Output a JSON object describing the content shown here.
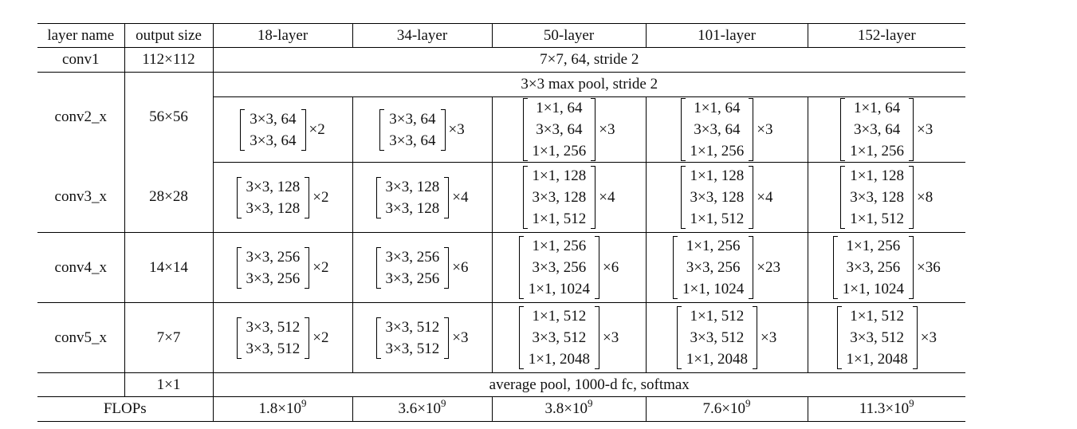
{
  "table": {
    "headers": [
      "layer name",
      "output size",
      "18-layer",
      "34-layer",
      "50-layer",
      "101-layer",
      "152-layer"
    ],
    "conv1": {
      "name": "conv1",
      "output_size": "112×112",
      "spec": "7×7, 64, stride 2"
    },
    "maxpool": {
      "spec": "3×3 max pool, stride 2"
    },
    "stages": [
      {
        "name": "conv2_x",
        "output_size": "56×56",
        "blocks": [
          {
            "lines": [
              "3×3, 64",
              "3×3, 64"
            ],
            "rep": "×2"
          },
          {
            "lines": [
              "3×3, 64",
              "3×3, 64"
            ],
            "rep": "×3"
          },
          {
            "lines": [
              "1×1, 64",
              "3×3, 64",
              "1×1, 256"
            ],
            "rep": "×3"
          },
          {
            "lines": [
              "1×1, 64",
              "3×3, 64",
              "1×1, 256"
            ],
            "rep": "×3"
          },
          {
            "lines": [
              "1×1, 64",
              "3×3, 64",
              "1×1, 256"
            ],
            "rep": "×3"
          }
        ]
      },
      {
        "name": "conv3_x",
        "output_size": "28×28",
        "blocks": [
          {
            "lines": [
              "3×3, 128",
              "3×3, 128"
            ],
            "rep": "×2"
          },
          {
            "lines": [
              "3×3, 128",
              "3×3, 128"
            ],
            "rep": "×4"
          },
          {
            "lines": [
              "1×1, 128",
              "3×3, 128",
              "1×1, 512"
            ],
            "rep": "×4"
          },
          {
            "lines": [
              "1×1, 128",
              "3×3, 128",
              "1×1, 512"
            ],
            "rep": "×4"
          },
          {
            "lines": [
              "1×1, 128",
              "3×3, 128",
              "1×1, 512"
            ],
            "rep": "×8"
          }
        ]
      },
      {
        "name": "conv4_x",
        "output_size": "14×14",
        "blocks": [
          {
            "lines": [
              "3×3, 256",
              "3×3, 256"
            ],
            "rep": "×2"
          },
          {
            "lines": [
              "3×3, 256",
              "3×3, 256"
            ],
            "rep": "×6"
          },
          {
            "lines": [
              "1×1, 256",
              "3×3, 256",
              "1×1, 1024"
            ],
            "rep": "×6"
          },
          {
            "lines": [
              "1×1, 256",
              "3×3, 256",
              "1×1, 1024"
            ],
            "rep": "×23"
          },
          {
            "lines": [
              "1×1, 256",
              "3×3, 256",
              "1×1, 1024"
            ],
            "rep": "×36"
          }
        ]
      },
      {
        "name": "conv5_x",
        "output_size": "7×7",
        "blocks": [
          {
            "lines": [
              "3×3, 512",
              "3×3, 512"
            ],
            "rep": "×2"
          },
          {
            "lines": [
              "3×3, 512",
              "3×3, 512"
            ],
            "rep": "×3"
          },
          {
            "lines": [
              "1×1, 512",
              "3×3, 512",
              "1×1, 2048"
            ],
            "rep": "×3"
          },
          {
            "lines": [
              "1×1, 512",
              "3×3, 512",
              "1×1, 2048"
            ],
            "rep": "×3"
          },
          {
            "lines": [
              "1×1, 512",
              "3×3, 512",
              "1×1, 2048"
            ],
            "rep": "×3"
          }
        ]
      }
    ],
    "fc": {
      "output_size": "1×1",
      "spec": "average pool, 1000-d fc, softmax"
    },
    "flops": {
      "label": "FLOPs",
      "values": [
        {
          "mantissa": "1.8×10",
          "exp": "9"
        },
        {
          "mantissa": "3.6×10",
          "exp": "9"
        },
        {
          "mantissa": "3.8×10",
          "exp": "9"
        },
        {
          "mantissa": "7.6×10",
          "exp": "9"
        },
        {
          "mantissa": "11.3×10",
          "exp": "9"
        }
      ]
    }
  }
}
